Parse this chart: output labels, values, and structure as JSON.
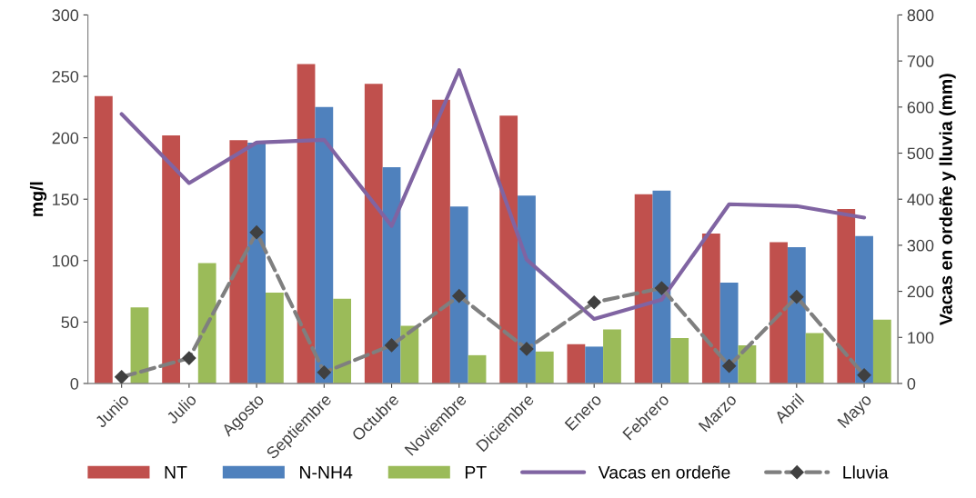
{
  "chart_data": {
    "type": "bar",
    "ylabel": "mg/l",
    "y2label": "Vacas en ordeñe y lluvia (mm)",
    "categories": [
      "Junio",
      "Julio",
      "Agosto",
      "Septiembre",
      "Octubre",
      "Noviembre",
      "Diciembre",
      "Enero",
      "Febrero",
      "Marzo",
      "Abril",
      "Mayo"
    ],
    "series": [
      {
        "name": "NT",
        "color": "#c0504d",
        "values": [
          234,
          202,
          198,
          260,
          244,
          231,
          218,
          32,
          154,
          122,
          115,
          142
        ]
      },
      {
        "name": "N-NH4",
        "color": "#4f81bd",
        "values": [
          null,
          null,
          196,
          225,
          176,
          144,
          153,
          30,
          157,
          82,
          111,
          120
        ]
      },
      {
        "name": "PT",
        "color": "#9bbb59",
        "values": [
          62,
          98,
          74,
          69,
          47,
          23,
          26,
          44,
          37,
          31,
          41,
          52
        ]
      },
      {
        "name": "Vacas en ordeñe",
        "type": "line",
        "axis": "y2",
        "color": "#8064a2",
        "marker": "none",
        "line_style": "solid",
        "values": [
          585,
          435,
          523,
          529,
          342,
          680,
          269,
          140,
          182,
          389,
          385,
          360
        ]
      },
      {
        "name": "Lluvia",
        "type": "line",
        "axis": "y2",
        "color": "#7f7f7f",
        "marker": "diamond",
        "line_style": "dashed",
        "values": [
          14,
          55,
          328,
          24,
          83,
          190,
          75,
          176,
          207,
          38,
          188,
          18
        ]
      }
    ],
    "ylim": [
      0,
      300
    ],
    "yticks": [
      0,
      50,
      100,
      150,
      200,
      250,
      300
    ],
    "y2lim": [
      0,
      800
    ],
    "y2ticks": [
      0,
      100,
      200,
      300,
      400,
      500,
      600,
      700,
      800
    ],
    "grid": false,
    "legend": "bottom"
  }
}
